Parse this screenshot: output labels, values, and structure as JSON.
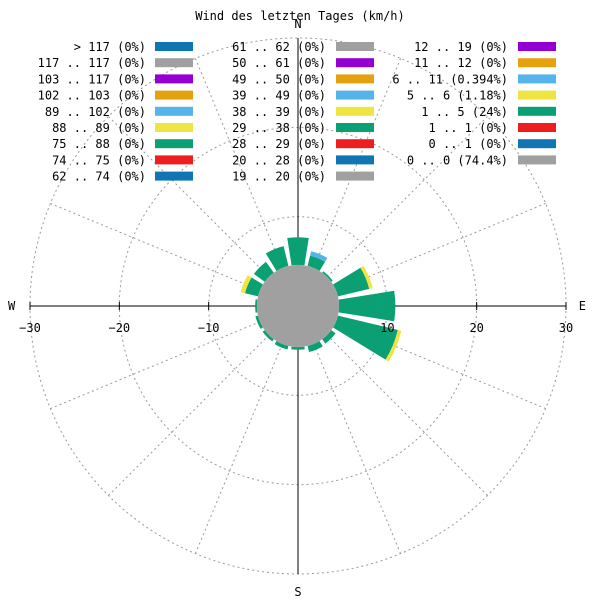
{
  "chart_data": {
    "type": "wind-rose",
    "title": "Wind des letzten Tages (km/h)",
    "compass": {
      "north": "N",
      "east": "E",
      "south": "S",
      "west": "W"
    },
    "x_ticks": [
      {
        "value": -30,
        "label": "−30"
      },
      {
        "value": -20,
        "label": "−20"
      },
      {
        "value": -10,
        "label": "−10"
      },
      {
        "value": 10,
        "label": "10"
      },
      {
        "value": 20,
        "label": "20"
      },
      {
        "value": 30,
        "label": "30"
      }
    ],
    "outer_radius": 30,
    "calm_radius": 4.6,
    "grid": true,
    "colors": {
      "blue": "#0f76b3",
      "gray": "#a0a0a0",
      "purple": "#9400d3",
      "orange": "#e6a10f",
      "sky": "#55b4e9",
      "yellow": "#eee442",
      "green": "#0aa073",
      "red": "#ee1e1e"
    },
    "legend": [
      [
        "> 117 (0%)",
        "blue"
      ],
      [
        "117 .. 117 (0%)",
        "gray"
      ],
      [
        "103 .. 117 (0%)",
        "purple"
      ],
      [
        "102 .. 103 (0%)",
        "orange"
      ],
      [
        "89 .. 102 (0%)",
        "sky"
      ],
      [
        "88 .. 89 (0%)",
        "yellow"
      ],
      [
        "75 .. 88 (0%)",
        "green"
      ],
      [
        "74 .. 75 (0%)",
        "red"
      ],
      [
        "62 .. 74 (0%)",
        "blue"
      ],
      [
        "61 .. 62 (0%)",
        "gray"
      ],
      [
        "50 .. 61 (0%)",
        "purple"
      ],
      [
        "49 .. 50 (0%)",
        "orange"
      ],
      [
        "39 .. 49 (0%)",
        "sky"
      ],
      [
        "38 .. 39 (0%)",
        "yellow"
      ],
      [
        "29 .. 38 (0%)",
        "green"
      ],
      [
        "28 .. 29 (0%)",
        "red"
      ],
      [
        "20 .. 28 (0%)",
        "blue"
      ],
      [
        "19 .. 20 (0%)",
        "gray"
      ],
      [
        "12 .. 19 (0%)",
        "purple"
      ],
      [
        "11 .. 12 (0%)",
        "orange"
      ],
      [
        "6 .. 11 (0.394%)",
        "sky"
      ],
      [
        "5 .. 6 (1.18%)",
        "yellow"
      ],
      [
        "1 .. 5 (24%)",
        "green"
      ],
      [
        "1 .. 1 (0%)",
        "red"
      ],
      [
        "0 .. 1 (0%)",
        "blue"
      ],
      [
        "0 .. 0 (74.4%)",
        "gray"
      ]
    ],
    "sectors": [
      {
        "dir": "N",
        "angle": 0,
        "segments": [
          [
            4.6,
            7.7,
            "green"
          ]
        ]
      },
      {
        "dir": "NNE",
        "angle": 22.5,
        "segments": [
          [
            4.6,
            5.8,
            "green"
          ],
          [
            5.8,
            6.3,
            "sky"
          ]
        ]
      },
      {
        "dir": "NE",
        "angle": 45,
        "segments": [
          [
            4.6,
            4.8,
            "green"
          ]
        ]
      },
      {
        "dir": "ENE",
        "angle": 67.5,
        "segments": [
          [
            4.6,
            8.2,
            "green"
          ],
          [
            8.2,
            8.6,
            "yellow"
          ]
        ]
      },
      {
        "dir": "E",
        "angle": 90,
        "segments": [
          [
            4.6,
            10.9,
            "green"
          ]
        ]
      },
      {
        "dir": "ESE",
        "angle": 112.5,
        "segments": [
          [
            4.6,
            11.5,
            "green"
          ],
          [
            11.5,
            11.9,
            "yellow"
          ]
        ]
      },
      {
        "dir": "SE",
        "angle": 135,
        "segments": [
          [
            4.6,
            5.2,
            "green"
          ]
        ]
      },
      {
        "dir": "SSE",
        "angle": 157.5,
        "segments": [
          [
            4.6,
            5.3,
            "green"
          ]
        ]
      },
      {
        "dir": "S",
        "angle": 180,
        "segments": [
          [
            4.6,
            4.9,
            "green"
          ]
        ]
      },
      {
        "dir": "SSW",
        "angle": 202.5,
        "segments": [
          [
            4.6,
            5.0,
            "green"
          ]
        ]
      },
      {
        "dir": "SW",
        "angle": 225,
        "segments": [
          [
            4.6,
            4.9,
            "green"
          ]
        ]
      },
      {
        "dir": "WSW",
        "angle": 247.5,
        "segments": [
          [
            4.6,
            4.9,
            "green"
          ]
        ]
      },
      {
        "dir": "W",
        "angle": 270,
        "segments": [
          [
            4.6,
            4.8,
            "green"
          ]
        ]
      },
      {
        "dir": "WNW",
        "angle": 292.5,
        "segments": [
          [
            4.6,
            6.1,
            "green"
          ],
          [
            6.1,
            6.6,
            "yellow"
          ]
        ]
      },
      {
        "dir": "NW",
        "angle": 315,
        "segments": [
          [
            4.6,
            6.1,
            "green"
          ]
        ]
      },
      {
        "dir": "NNW",
        "angle": 337.5,
        "segments": [
          [
            4.6,
            6.9,
            "green"
          ]
        ]
      }
    ]
  }
}
